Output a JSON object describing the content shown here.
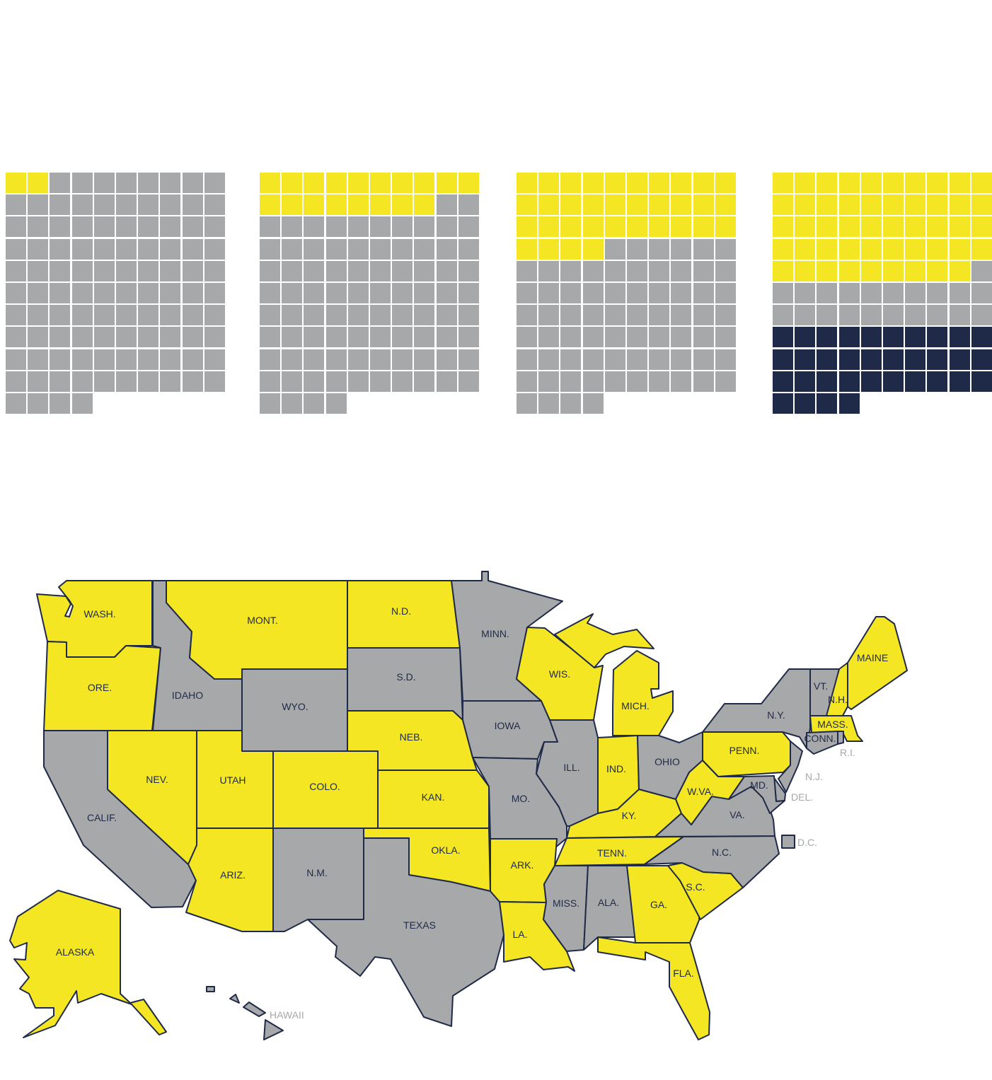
{
  "colors": {
    "yellow": "#f4e622",
    "gray": "#a7a8a9",
    "navy": "#1f2a48",
    "label": "#1f2a48",
    "outside_label": "#a7a8a9"
  },
  "waffles": [
    {
      "total": 104,
      "yellow": 2,
      "gray": 102,
      "navy": 0
    },
    {
      "total": 104,
      "yellow": 18,
      "gray": 86,
      "navy": 0
    },
    {
      "total": 104,
      "yellow": 34,
      "gray": 70,
      "navy": 0
    },
    {
      "total": 104,
      "yellow": 49,
      "gray": 21,
      "navy": 34
    }
  ],
  "states": [
    {
      "abbr": "WASH.",
      "fill": "yellow"
    },
    {
      "abbr": "ORE.",
      "fill": "yellow"
    },
    {
      "abbr": "CALIF.",
      "fill": "gray"
    },
    {
      "abbr": "IDAHO",
      "fill": "gray"
    },
    {
      "abbr": "NEV.",
      "fill": "yellow"
    },
    {
      "abbr": "MONT.",
      "fill": "yellow"
    },
    {
      "abbr": "WYO.",
      "fill": "gray"
    },
    {
      "abbr": "UTAH",
      "fill": "yellow"
    },
    {
      "abbr": "ARIZ.",
      "fill": "yellow"
    },
    {
      "abbr": "COLO.",
      "fill": "yellow"
    },
    {
      "abbr": "N.M.",
      "fill": "gray"
    },
    {
      "abbr": "N.D.",
      "fill": "yellow"
    },
    {
      "abbr": "S.D.",
      "fill": "gray"
    },
    {
      "abbr": "NEB.",
      "fill": "yellow"
    },
    {
      "abbr": "KAN.",
      "fill": "yellow"
    },
    {
      "abbr": "OKLA.",
      "fill": "yellow"
    },
    {
      "abbr": "TEXAS",
      "fill": "gray"
    },
    {
      "abbr": "MINN.",
      "fill": "gray"
    },
    {
      "abbr": "IOWA",
      "fill": "gray"
    },
    {
      "abbr": "MO.",
      "fill": "gray"
    },
    {
      "abbr": "ARK.",
      "fill": "yellow"
    },
    {
      "abbr": "LA.",
      "fill": "yellow"
    },
    {
      "abbr": "WIS.",
      "fill": "yellow"
    },
    {
      "abbr": "ILL.",
      "fill": "gray"
    },
    {
      "abbr": "MICH.",
      "fill": "yellow"
    },
    {
      "abbr": "IND.",
      "fill": "yellow"
    },
    {
      "abbr": "OHIO",
      "fill": "gray"
    },
    {
      "abbr": "KY.",
      "fill": "yellow"
    },
    {
      "abbr": "TENN.",
      "fill": "yellow"
    },
    {
      "abbr": "MISS.",
      "fill": "gray"
    },
    {
      "abbr": "ALA.",
      "fill": "gray"
    },
    {
      "abbr": "GA.",
      "fill": "yellow"
    },
    {
      "abbr": "FLA.",
      "fill": "yellow"
    },
    {
      "abbr": "S.C.",
      "fill": "yellow"
    },
    {
      "abbr": "N.C.",
      "fill": "gray"
    },
    {
      "abbr": "VA.",
      "fill": "gray"
    },
    {
      "abbr": "W.VA.",
      "fill": "yellow"
    },
    {
      "abbr": "PENN.",
      "fill": "yellow"
    },
    {
      "abbr": "N.Y.",
      "fill": "gray"
    },
    {
      "abbr": "VT.",
      "fill": "gray"
    },
    {
      "abbr": "N.H.",
      "fill": "yellow"
    },
    {
      "abbr": "MAINE",
      "fill": "yellow"
    },
    {
      "abbr": "MASS.",
      "fill": "yellow"
    },
    {
      "abbr": "CONN.",
      "fill": "gray"
    },
    {
      "abbr": "R.I.",
      "fill": "gray"
    },
    {
      "abbr": "N.J.",
      "fill": "gray"
    },
    {
      "abbr": "DEL.",
      "fill": "gray"
    },
    {
      "abbr": "MD.",
      "fill": "gray"
    },
    {
      "abbr": "D.C.",
      "fill": "gray"
    },
    {
      "abbr": "ALASKA",
      "fill": "yellow"
    },
    {
      "abbr": "HAWAII",
      "fill": "gray"
    }
  ]
}
